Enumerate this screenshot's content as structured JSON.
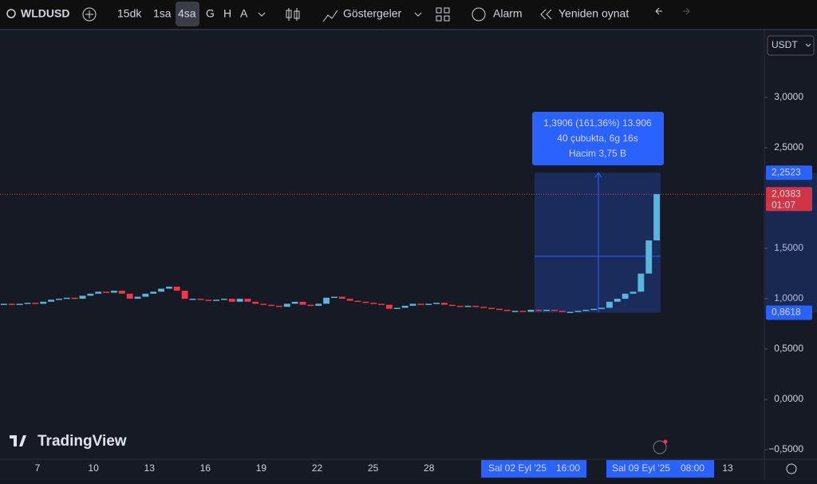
{
  "toolbar": {
    "symbol": "WLDUSD",
    "intervals": [
      "15dk",
      "1sa",
      "4sa",
      "G",
      "H",
      "A"
    ],
    "indicators": "Göstergeler",
    "alarm": "Alarm",
    "replay": "Yeniden oynat"
  },
  "chart": {
    "type": "candlestick",
    "currency": "USDT",
    "logo": "TradingView",
    "up_color": "#5ab4dc",
    "down_color": "#f23645",
    "ylim": [
      -0.595,
      3.683
    ],
    "yticks": [
      {
        "value": 3,
        "label": "3,0000"
      },
      {
        "value": 2.5,
        "label": "2,5000"
      },
      {
        "value": 1.5,
        "label": "1,5000"
      },
      {
        "value": 1,
        "label": "1,0000"
      },
      {
        "value": 0.5,
        "label": "0,5000"
      },
      {
        "value": 0,
        "label": "0,0000"
      },
      {
        "value": -0.5,
        "label": "−0,5000"
      }
    ],
    "x_labels": [
      "7",
      "10",
      "13",
      "16",
      "19",
      "22",
      "25",
      "28"
    ],
    "x_end_label": "13",
    "candles": {
      "open": [
        0.95,
        0.95,
        0.94,
        0.95,
        0.96,
        0.95,
        0.97,
        0.99,
        1.0,
        1.01,
        1.0,
        1.03,
        1.05,
        1.07,
        1.06,
        1.08,
        1.05,
        1.0,
        1.02,
        1.05,
        1.07,
        1.1,
        1.12,
        1.08,
        1.0,
        1.0,
        0.99,
        0.98,
        0.99,
        1.0,
        0.97,
        1.0,
        0.97,
        0.95,
        0.94,
        0.93,
        0.92,
        0.95,
        0.97,
        0.94,
        0.93,
        0.95,
        1.01,
        1.02,
        1.0,
        0.98,
        0.97,
        0.96,
        0.95,
        0.94,
        0.9,
        0.91,
        0.93,
        0.95,
        0.94,
        0.95,
        0.96,
        0.94,
        0.93,
        0.92,
        0.93,
        0.92,
        0.91,
        0.9,
        0.89,
        0.88,
        0.88,
        0.87,
        0.89,
        0.88,
        0.89,
        0.88,
        0.87,
        0.87,
        0.88,
        0.89,
        0.9,
        0.91,
        0.97,
        1.0,
        1.05,
        1.07,
        1.25,
        1.58
      ],
      "close": [
        0.95,
        0.94,
        0.95,
        0.96,
        0.95,
        0.97,
        0.99,
        1.0,
        1.01,
        1.0,
        1.03,
        1.05,
        1.07,
        1.06,
        1.08,
        1.05,
        1.0,
        1.02,
        1.05,
        1.07,
        1.1,
        1.12,
        1.08,
        1.0,
        1.0,
        0.99,
        0.98,
        0.99,
        1.0,
        0.97,
        1.0,
        0.97,
        0.95,
        0.94,
        0.93,
        0.92,
        0.95,
        0.97,
        0.94,
        0.93,
        0.95,
        1.01,
        1.02,
        1.0,
        0.98,
        0.97,
        0.96,
        0.95,
        0.94,
        0.9,
        0.91,
        0.93,
        0.95,
        0.94,
        0.95,
        0.96,
        0.94,
        0.93,
        0.92,
        0.93,
        0.92,
        0.91,
        0.9,
        0.89,
        0.88,
        0.88,
        0.87,
        0.89,
        0.88,
        0.89,
        0.88,
        0.87,
        0.87,
        0.88,
        0.89,
        0.9,
        0.91,
        0.97,
        1.0,
        1.05,
        1.07,
        1.25,
        1.58,
        2.04
      ]
    },
    "measure": {
      "start_date": "Sal 02 Eyl '25",
      "start_time": "16:00",
      "end_date": "Sal 09 Eyl '25",
      "end_time": "08:00",
      "high": {
        "value": 2.2523,
        "label": "2,2523"
      },
      "low": {
        "value": 0.8618,
        "label": "0,8618"
      },
      "lines": [
        "1,3906 (161,36%) 13.906",
        "40 çubukta, 6g 16s",
        "Hacim 3,75 B"
      ]
    },
    "last_price": {
      "value": 2.0383,
      "label": "2,0383"
    },
    "countdown": "01:07"
  }
}
